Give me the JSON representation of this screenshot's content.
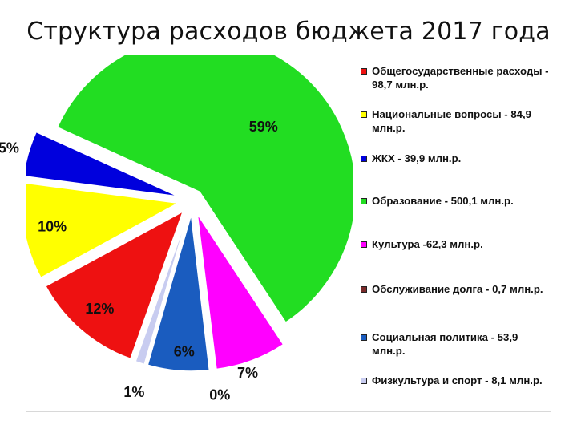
{
  "title": "Структура расходов бюджета 2017 года",
  "chart_data": {
    "type": "pie",
    "title": "Структура расходов бюджета 2017 года",
    "slices": [
      {
        "name": "Общегосударственные расходы",
        "value": 98.7,
        "percent_label": "12%",
        "color": "#ee1111",
        "legend": "Общегосударственные расходы - 98,7 млн.р."
      },
      {
        "name": "Национальные вопросы",
        "value": 84.9,
        "percent_label": "10%",
        "color": "#ffff00",
        "legend": "Национальные вопросы - 84,9 млн.р."
      },
      {
        "name": "ЖКХ",
        "value": 39.9,
        "percent_label": "5%",
        "color": "#0000dd",
        "legend": "ЖКХ - 39,9 млн.р."
      },
      {
        "name": "Образование",
        "value": 500.1,
        "percent_label": "59%",
        "color": "#22dd22",
        "legend": "Образование - 500,1 млн.р."
      },
      {
        "name": "Культура",
        "value": 62.3,
        "percent_label": "7%",
        "color": "#ff00ff",
        "legend": "Культура -62,3 млн.р."
      },
      {
        "name": "Обслуживание долга",
        "value": 0.7,
        "percent_label": "0%",
        "color": "#7a2b2b",
        "legend": "Обслуживание долга - 0,7 млн.р."
      },
      {
        "name": "Социальная политика",
        "value": 53.9,
        "percent_label": "6%",
        "color": "#1a5cbf",
        "legend": "Социальная политика - 53,9 млн.р."
      },
      {
        "name": "Физкультура и спорт",
        "value": 8.1,
        "percent_label": "1%",
        "color": "#c8ccf0",
        "legend": "Физкультура и спорт - 8,1 млн.р."
      }
    ],
    "legend_position": "right",
    "exploded": true
  }
}
